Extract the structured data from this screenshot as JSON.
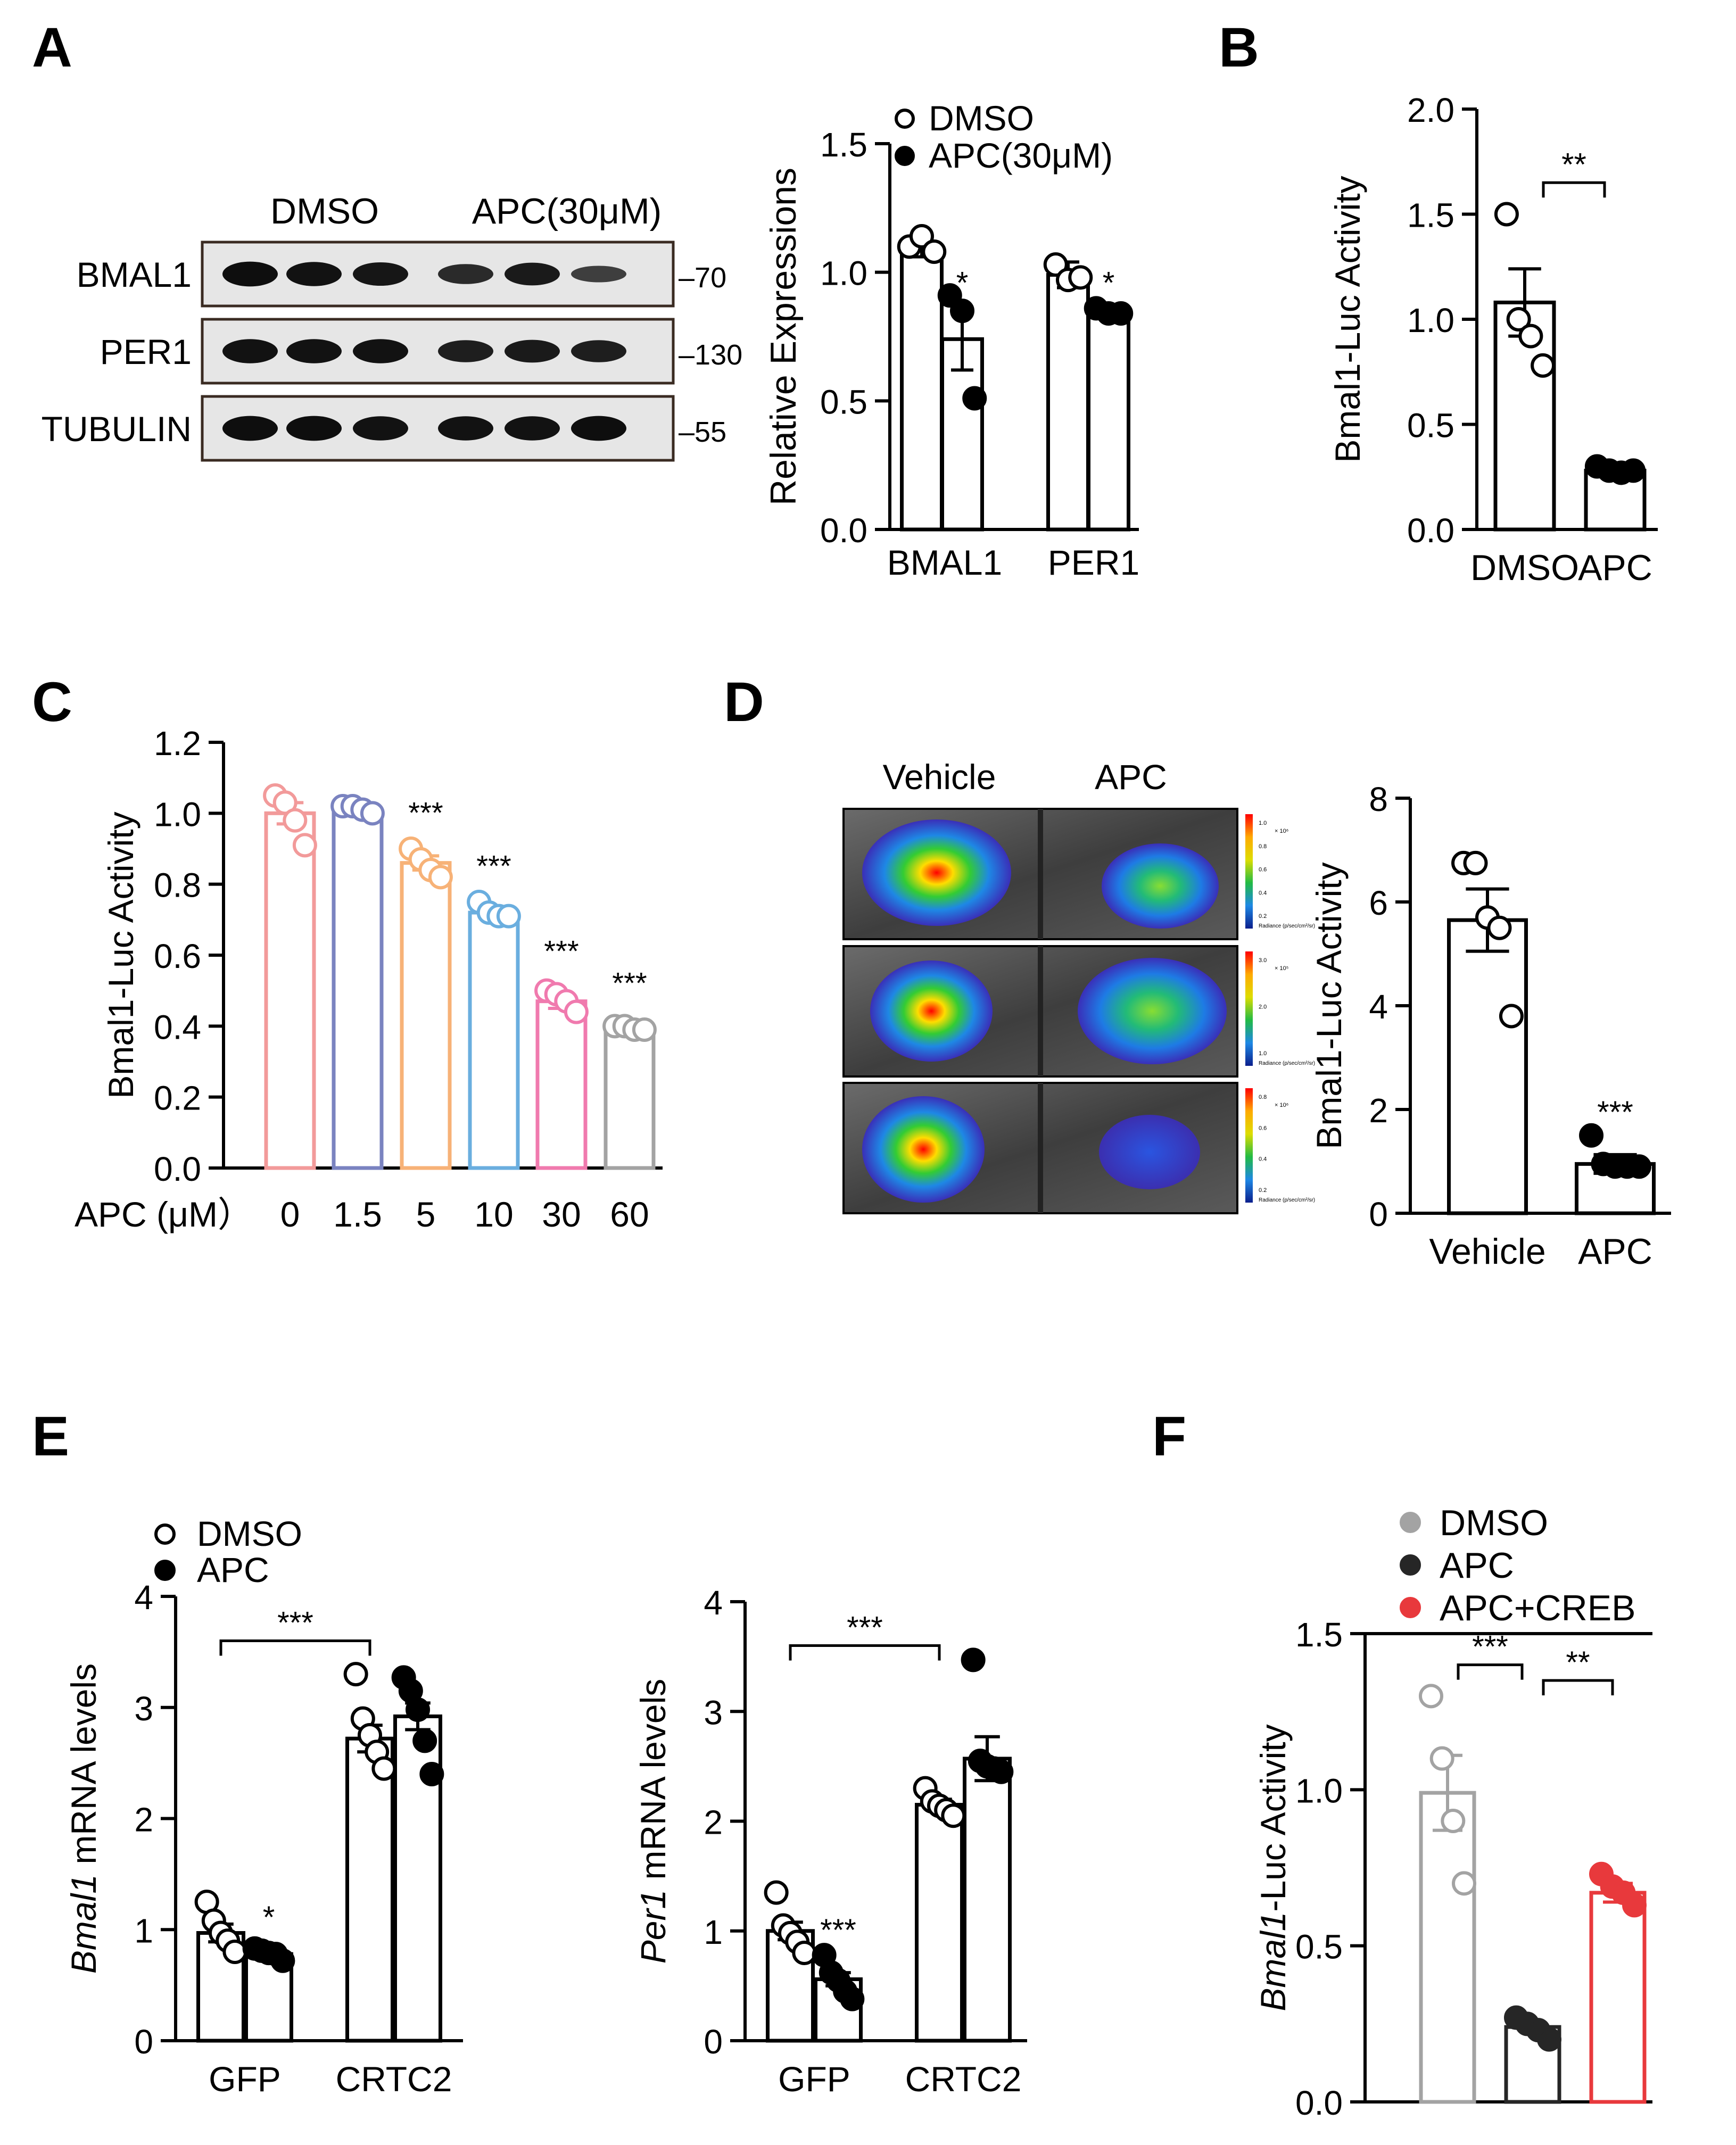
{
  "panel_letters": [
    "A",
    "B",
    "C",
    "D",
    "E",
    "F"
  ],
  "chart_data": [
    {
      "panel": "A",
      "type": "western-blot",
      "group_labels": [
        "DMSO",
        "APC(30μM)"
      ],
      "rows": [
        {
          "protein": "BMAL1",
          "marker": "–70",
          "band_intensity": [
            0.95,
            0.9,
            0.85,
            0.6,
            0.8,
            0.35
          ]
        },
        {
          "protein": "PER1",
          "marker": "–130",
          "band_intensity": [
            0.9,
            0.9,
            0.9,
            0.75,
            0.8,
            0.75
          ]
        },
        {
          "protein": "TUBULIN",
          "marker": "–55",
          "band_intensity": [
            0.95,
            0.95,
            0.9,
            0.9,
            0.9,
            0.95
          ]
        }
      ]
    },
    {
      "panel": "A",
      "type": "bar",
      "ylabel": "Relative Expressions",
      "ylim": [
        0,
        1.5
      ],
      "yticks": [
        "0.0",
        "0.5",
        "1.0",
        "1.5"
      ],
      "categories": [
        "BMAL1",
        "PER1"
      ],
      "legend": [
        {
          "name": "DMSO",
          "style": "open"
        },
        {
          "name": "APC(30μM)",
          "style": "filled"
        }
      ],
      "series": [
        {
          "name": "DMSO",
          "color": "#000000",
          "fill": "open",
          "means": [
            1.1,
            0.99
          ],
          "errors": [
            0.04,
            0.05
          ],
          "points": [
            [
              1.1,
              1.14,
              1.08
            ],
            [
              1.03,
              0.97,
              0.98
            ]
          ]
        },
        {
          "name": "APC(30μM)",
          "color": "#000000",
          "fill": "filled",
          "means": [
            0.74,
            0.85
          ],
          "errors": [
            0.12,
            0.01
          ],
          "points": [
            [
              0.91,
              0.85,
              0.51
            ],
            [
              0.86,
              0.84,
              0.84
            ]
          ]
        }
      ],
      "annotations": [
        {
          "category": 1,
          "text": "*"
        },
        {
          "category": 2,
          "text": "*"
        }
      ]
    },
    {
      "panel": "B",
      "type": "bar",
      "ylabel": "Bmal1-Luc Activity",
      "ylim": [
        0,
        2.0
      ],
      "yticks": [
        "0.0",
        "0.5",
        "1.0",
        "1.5",
        "2.0"
      ],
      "categories": [
        "DMSO",
        "APC"
      ],
      "bars": [
        {
          "mean": 1.08,
          "error": 0.16,
          "fill": "open",
          "color": "#000000",
          "points": [
            1.5,
            1.0,
            0.92,
            0.78
          ]
        },
        {
          "mean": 0.28,
          "error": 0.01,
          "fill": "filled",
          "color": "#000000",
          "points": [
            0.3,
            0.28,
            0.27,
            0.28
          ]
        }
      ],
      "brackets": [
        {
          "from": 0,
          "to": 1,
          "y": 1.65,
          "text": "**"
        }
      ]
    },
    {
      "panel": "C",
      "type": "bar",
      "ylabel": "Bmal1-Luc Activity",
      "xlabel": "APC (μM）",
      "ylim": [
        0,
        1.2
      ],
      "yticks": [
        "0.0",
        "0.2",
        "0.4",
        "0.6",
        "0.8",
        "1.0",
        "1.2"
      ],
      "categories": [
        "0",
        "1.5",
        "5",
        "10",
        "30",
        "60"
      ],
      "bars": [
        {
          "mean": 1.0,
          "error": 0.03,
          "fill": "open",
          "color": "#f29a9a",
          "points": [
            1.05,
            1.03,
            0.98,
            0.91
          ]
        },
        {
          "mean": 1.01,
          "error": 0.01,
          "fill": "open",
          "color": "#7a83c0",
          "points": [
            1.02,
            1.02,
            1.01,
            1.0
          ]
        },
        {
          "mean": 0.86,
          "error": 0.02,
          "fill": "open",
          "color": "#f7b277",
          "points": [
            0.9,
            0.87,
            0.84,
            0.82
          ]
        },
        {
          "mean": 0.72,
          "error": 0.01,
          "fill": "open",
          "color": "#6aaedf",
          "points": [
            0.75,
            0.72,
            0.71,
            0.71
          ]
        },
        {
          "mean": 0.47,
          "error": 0.02,
          "fill": "open",
          "color": "#f07aae",
          "points": [
            0.5,
            0.49,
            0.47,
            0.44
          ]
        },
        {
          "mean": 0.39,
          "error": 0.01,
          "fill": "open",
          "color": "#a3a3a3",
          "points": [
            0.4,
            0.4,
            0.39,
            0.39
          ]
        }
      ],
      "annotations": [
        {
          "category": 2,
          "text": "***"
        },
        {
          "category": 3,
          "text": "***"
        },
        {
          "category": 4,
          "text": "***"
        },
        {
          "category": 5,
          "text": "***"
        }
      ]
    },
    {
      "panel": "D",
      "type": "bioluminescence-image",
      "column_labels": [
        "Vehicle",
        "APC"
      ],
      "colorbar_labels": [
        {
          "title": "Radiance (p/sec/cm²/sr)",
          "unit": "× 10⁶",
          "ticks": [
            "1.0",
            "0.8",
            "0.6",
            "0.4",
            "0.2"
          ]
        },
        {
          "title": "Radiance (p/sec/cm²/sr)",
          "unit": "× 10⁵",
          "ticks": [
            "3.0",
            "2.0",
            "1.0"
          ]
        },
        {
          "title": "Radiance (p/sec/cm²/sr)",
          "unit": "× 10⁶",
          "ticks": [
            "0.8",
            "0.6",
            "0.4",
            "0.2"
          ]
        }
      ]
    },
    {
      "panel": "D",
      "type": "bar",
      "ylabel": "Bmal1-Luc Activity",
      "ylim": [
        0,
        8
      ],
      "yticks": [
        "0",
        "2",
        "4",
        "6",
        "8"
      ],
      "categories": [
        "Vehicle",
        "APC"
      ],
      "bars": [
        {
          "mean": 5.65,
          "error": 0.6,
          "fill": "open",
          "color": "#000000",
          "points": [
            6.75,
            6.75,
            5.7,
            5.5,
            3.8
          ]
        },
        {
          "mean": 0.95,
          "error": 0.18,
          "fill": "filled",
          "color": "#000000",
          "points": [
            1.5,
            0.95,
            0.9,
            0.9,
            0.9
          ]
        }
      ],
      "annotations": [
        {
          "category": 1,
          "text": "***"
        }
      ]
    },
    {
      "panel": "E",
      "type": "bar",
      "ylabel_italic": "Bmal1",
      "ylabel_rest": " mRNA levels",
      "ylim": [
        0,
        4
      ],
      "yticks": [
        "0",
        "1",
        "2",
        "3",
        "4"
      ],
      "categories": [
        "GFP",
        "CRTC2"
      ],
      "legend": [
        {
          "name": "DMSO",
          "style": "open"
        },
        {
          "name": "APC",
          "style": "filled"
        }
      ],
      "series": [
        {
          "name": "DMSO",
          "color": "#000000",
          "fill": "open",
          "means": [
            0.97,
            2.72
          ],
          "errors": [
            0.08,
            0.12
          ],
          "points": [
            [
              1.25,
              1.08,
              0.97,
              0.9,
              0.8
            ],
            [
              3.3,
              2.9,
              2.75,
              2.6,
              2.45
            ]
          ]
        },
        {
          "name": "APC",
          "color": "#000000",
          "fill": "filled",
          "means": [
            0.78,
            2.92
          ],
          "errors": [
            0.02,
            0.12
          ],
          "points": [
            [
              0.83,
              0.81,
              0.79,
              0.78,
              0.72
            ],
            [
              3.27,
              3.15,
              2.98,
              2.7,
              2.4
            ]
          ]
        }
      ],
      "brackets": [
        {
          "from": 1,
          "to": 2,
          "y": 3.6,
          "text": "***"
        }
      ],
      "annotations": [
        {
          "category": 1,
          "text": "*"
        }
      ]
    },
    {
      "panel": "E",
      "type": "bar",
      "ylabel_italic": "Per1",
      "ylabel_rest": " mRNA levels",
      "ylim": [
        0,
        4
      ],
      "yticks": [
        "0",
        "1",
        "2",
        "3",
        "4"
      ],
      "categories": [
        "GFP",
        "CRTC2"
      ],
      "series": [
        {
          "name": "DMSO",
          "color": "#000000",
          "fill": "open",
          "means": [
            1.0,
            2.15
          ],
          "errors": [
            0.08,
            0.05
          ],
          "points": [
            [
              1.35,
              1.05,
              0.98,
              0.9,
              0.8
            ],
            [
              2.3,
              2.18,
              2.14,
              2.1,
              2.05
            ]
          ]
        },
        {
          "name": "APC",
          "color": "#000000",
          "fill": "filled",
          "means": [
            0.56,
            2.57
          ],
          "errors": [
            0.06,
            0.2
          ],
          "points": [
            [
              0.78,
              0.62,
              0.55,
              0.45,
              0.38
            ],
            [
              3.47,
              2.55,
              2.5,
              2.48,
              2.45
            ]
          ]
        }
      ],
      "brackets": [
        {
          "from": 1,
          "to": 2,
          "y": 3.6,
          "text": "***"
        }
      ],
      "annotations": [
        {
          "category": 1,
          "text": "***"
        }
      ]
    },
    {
      "panel": "F",
      "type": "bar",
      "ylabel_italic": "Bmal1",
      "ylabel_rest": "-Luc Activity",
      "ylim": [
        0,
        1.5
      ],
      "yticks": [
        "0.0",
        "0.5",
        "1.0",
        "1.5"
      ],
      "categories": [
        "DMSO",
        "APC",
        "APC+CREB"
      ],
      "legend": [
        {
          "name": "DMSO",
          "color": "#a3a3a3"
        },
        {
          "name": "APC",
          "color": "#262626"
        },
        {
          "name": "APC+CREB",
          "color": "#e8393c"
        }
      ],
      "bars": [
        {
          "mean": 0.99,
          "error": 0.12,
          "fill": "open",
          "color": "#a3a3a3",
          "points": [
            1.3,
            1.1,
            0.9,
            0.7
          ]
        },
        {
          "mean": 0.24,
          "error": 0.01,
          "fill": "filled",
          "color": "#262626",
          "points": [
            0.27,
            0.25,
            0.23,
            0.2
          ]
        },
        {
          "mean": 0.67,
          "error": 0.03,
          "fill": "filled",
          "color": "#e8393c",
          "points": [
            0.73,
            0.69,
            0.67,
            0.63
          ]
        }
      ],
      "brackets": [
        {
          "from": 0,
          "to": 1,
          "y": 1.4,
          "text": "***"
        },
        {
          "from": 1,
          "to": 2,
          "y": 1.35,
          "text": "**"
        }
      ]
    }
  ]
}
